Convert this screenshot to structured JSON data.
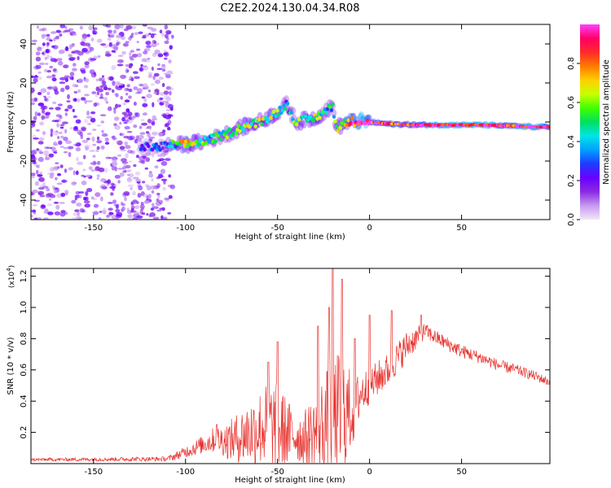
{
  "title": "C2E2.2024.130.04.34.R08",
  "colors": {
    "background": "#ffffff",
    "axis": "#000000",
    "snr_line": "#e8332f",
    "colormap": [
      "#f2e6f7",
      "#c79af0",
      "#8a2be2",
      "#6a00ff",
      "#1d3cff",
      "#00a0ff",
      "#00e5e5",
      "#00e060",
      "#40ff00",
      "#c8ff00",
      "#ffd000",
      "#ff7a00",
      "#ff2a2a",
      "#ff0066",
      "#ff40ff"
    ]
  },
  "chart_data": [
    {
      "type": "heatmap",
      "name": "spectrogram",
      "xlabel": "Height of straight line (km)",
      "ylabel": "Frequency (Hz)",
      "xlim": [
        -184,
        98
      ],
      "ylim": [
        -50,
        50
      ],
      "xticks": [
        -150,
        -100,
        -50,
        0,
        50
      ],
      "yticks": [
        -40,
        -20,
        0,
        20,
        40
      ],
      "noise_region": {
        "x_range": [
          -184,
          -107
        ],
        "y_range": [
          -50,
          50
        ],
        "amplitude_range": [
          0.05,
          0.25
        ]
      },
      "ridge": [
        {
          "x": -125,
          "y": -13,
          "amp": 0.22
        },
        {
          "x": -115,
          "y": -13,
          "amp": 0.25
        },
        {
          "x": -108,
          "y": -12,
          "amp": 0.35
        },
        {
          "x": -100,
          "y": -11.5,
          "amp": 0.75
        },
        {
          "x": -90,
          "y": -10,
          "amp": 0.45
        },
        {
          "x": -80,
          "y": -7,
          "amp": 0.5
        },
        {
          "x": -70,
          "y": -3,
          "amp": 0.55
        },
        {
          "x": -60,
          "y": 0,
          "amp": 0.6
        },
        {
          "x": -50,
          "y": 5,
          "amp": 0.5
        },
        {
          "x": -45,
          "y": 9,
          "amp": 0.35
        },
        {
          "x": -40,
          "y": 0,
          "amp": 0.5
        },
        {
          "x": -30,
          "y": 2,
          "amp": 0.55
        },
        {
          "x": -20,
          "y": 8,
          "amp": 0.45
        },
        {
          "x": -18,
          "y": -3,
          "amp": 0.55
        },
        {
          "x": -12,
          "y": 0,
          "amp": 0.75
        },
        {
          "x": -5,
          "y": 0.5,
          "amp": 0.95
        },
        {
          "x": 0,
          "y": 0,
          "amp": 0.9
        },
        {
          "x": 10,
          "y": -1,
          "amp": 0.85
        },
        {
          "x": 25,
          "y": -1.5,
          "amp": 0.9
        },
        {
          "x": 40,
          "y": -1.5,
          "amp": 0.95
        },
        {
          "x": 60,
          "y": -1.5,
          "amp": 0.95
        },
        {
          "x": 75,
          "y": -2,
          "amp": 0.9
        },
        {
          "x": 90,
          "y": -2.5,
          "amp": 0.95
        },
        {
          "x": 98,
          "y": -2.5,
          "amp": 0.9
        }
      ]
    },
    {
      "type": "colorbar",
      "name": "amplitude-colorbar",
      "label": "Normalized spectral amplitude",
      "range": [
        0.0,
        1.0
      ],
      "ticks": [
        0.0,
        0.2,
        0.4,
        0.6,
        0.8
      ],
      "tick_labels": [
        "0.0",
        "0.2",
        "0.4",
        "0.6",
        "0.8"
      ]
    },
    {
      "type": "line",
      "name": "snr",
      "xlabel": "Height of straight line (km)",
      "ylabel": "SNR (10 * v/v)",
      "scale_label": "(x10",
      "scale_exponent": "4",
      "scale_close": ")",
      "xlim": [
        -184,
        98
      ],
      "ylim": [
        0,
        1.25
      ],
      "xticks": [
        -150,
        -100,
        -50,
        0,
        50
      ],
      "yticks": [
        0.2,
        0.4,
        0.6,
        0.8,
        1.0,
        1.2
      ],
      "ytick_labels": [
        "0.2",
        "0.4",
        "0.6",
        "0.8",
        "1.0",
        "1.2"
      ],
      "baseline": [
        {
          "x": -184,
          "y": 0.025
        },
        {
          "x": -110,
          "y": 0.03
        },
        {
          "x": -105,
          "y": 0.05
        },
        {
          "x": -95,
          "y": 0.1
        },
        {
          "x": -85,
          "y": 0.15
        },
        {
          "x": -75,
          "y": 0.15
        },
        {
          "x": -65,
          "y": 0.2
        },
        {
          "x": -55,
          "y": 0.25
        },
        {
          "x": -45,
          "y": 0.2
        },
        {
          "x": -35,
          "y": 0.15
        },
        {
          "x": -25,
          "y": 0.25
        },
        {
          "x": -15,
          "y": 0.3
        },
        {
          "x": -8,
          "y": 0.35
        },
        {
          "x": -5,
          "y": 0.45
        },
        {
          "x": 0,
          "y": 0.5
        },
        {
          "x": 10,
          "y": 0.6
        },
        {
          "x": 20,
          "y": 0.75
        },
        {
          "x": 30,
          "y": 0.85
        },
        {
          "x": 40,
          "y": 0.78
        },
        {
          "x": 50,
          "y": 0.72
        },
        {
          "x": 60,
          "y": 0.68
        },
        {
          "x": 70,
          "y": 0.63
        },
        {
          "x": 80,
          "y": 0.6
        },
        {
          "x": 90,
          "y": 0.56
        },
        {
          "x": 98,
          "y": 0.52
        }
      ],
      "spread": [
        {
          "x": -184,
          "y": 0.01
        },
        {
          "x": -110,
          "y": 0.015
        },
        {
          "x": -90,
          "y": 0.06
        },
        {
          "x": -80,
          "y": 0.1
        },
        {
          "x": -60,
          "y": 0.25
        },
        {
          "x": -50,
          "y": 0.3
        },
        {
          "x": -40,
          "y": 0.15
        },
        {
          "x": -30,
          "y": 0.25
        },
        {
          "x": -20,
          "y": 0.4
        },
        {
          "x": -15,
          "y": 0.45
        },
        {
          "x": -10,
          "y": 0.25
        },
        {
          "x": -5,
          "y": 0.15
        },
        {
          "x": 0,
          "y": 0.12
        },
        {
          "x": 20,
          "y": 0.1
        },
        {
          "x": 30,
          "y": 0.05
        },
        {
          "x": 60,
          "y": 0.04
        },
        {
          "x": 98,
          "y": 0.03
        }
      ],
      "peaks": [
        {
          "x": -83,
          "y": 0.25
        },
        {
          "x": -55,
          "y": 0.65
        },
        {
          "x": -50,
          "y": 0.78
        },
        {
          "x": -28,
          "y": 0.88
        },
        {
          "x": -22,
          "y": 1.0
        },
        {
          "x": -20,
          "y": 1.25
        },
        {
          "x": -15,
          "y": 1.18
        },
        {
          "x": -8,
          "y": 0.8
        },
        {
          "x": 0,
          "y": 0.95
        },
        {
          "x": 12,
          "y": 0.98
        },
        {
          "x": 28,
          "y": 0.95
        }
      ]
    }
  ]
}
